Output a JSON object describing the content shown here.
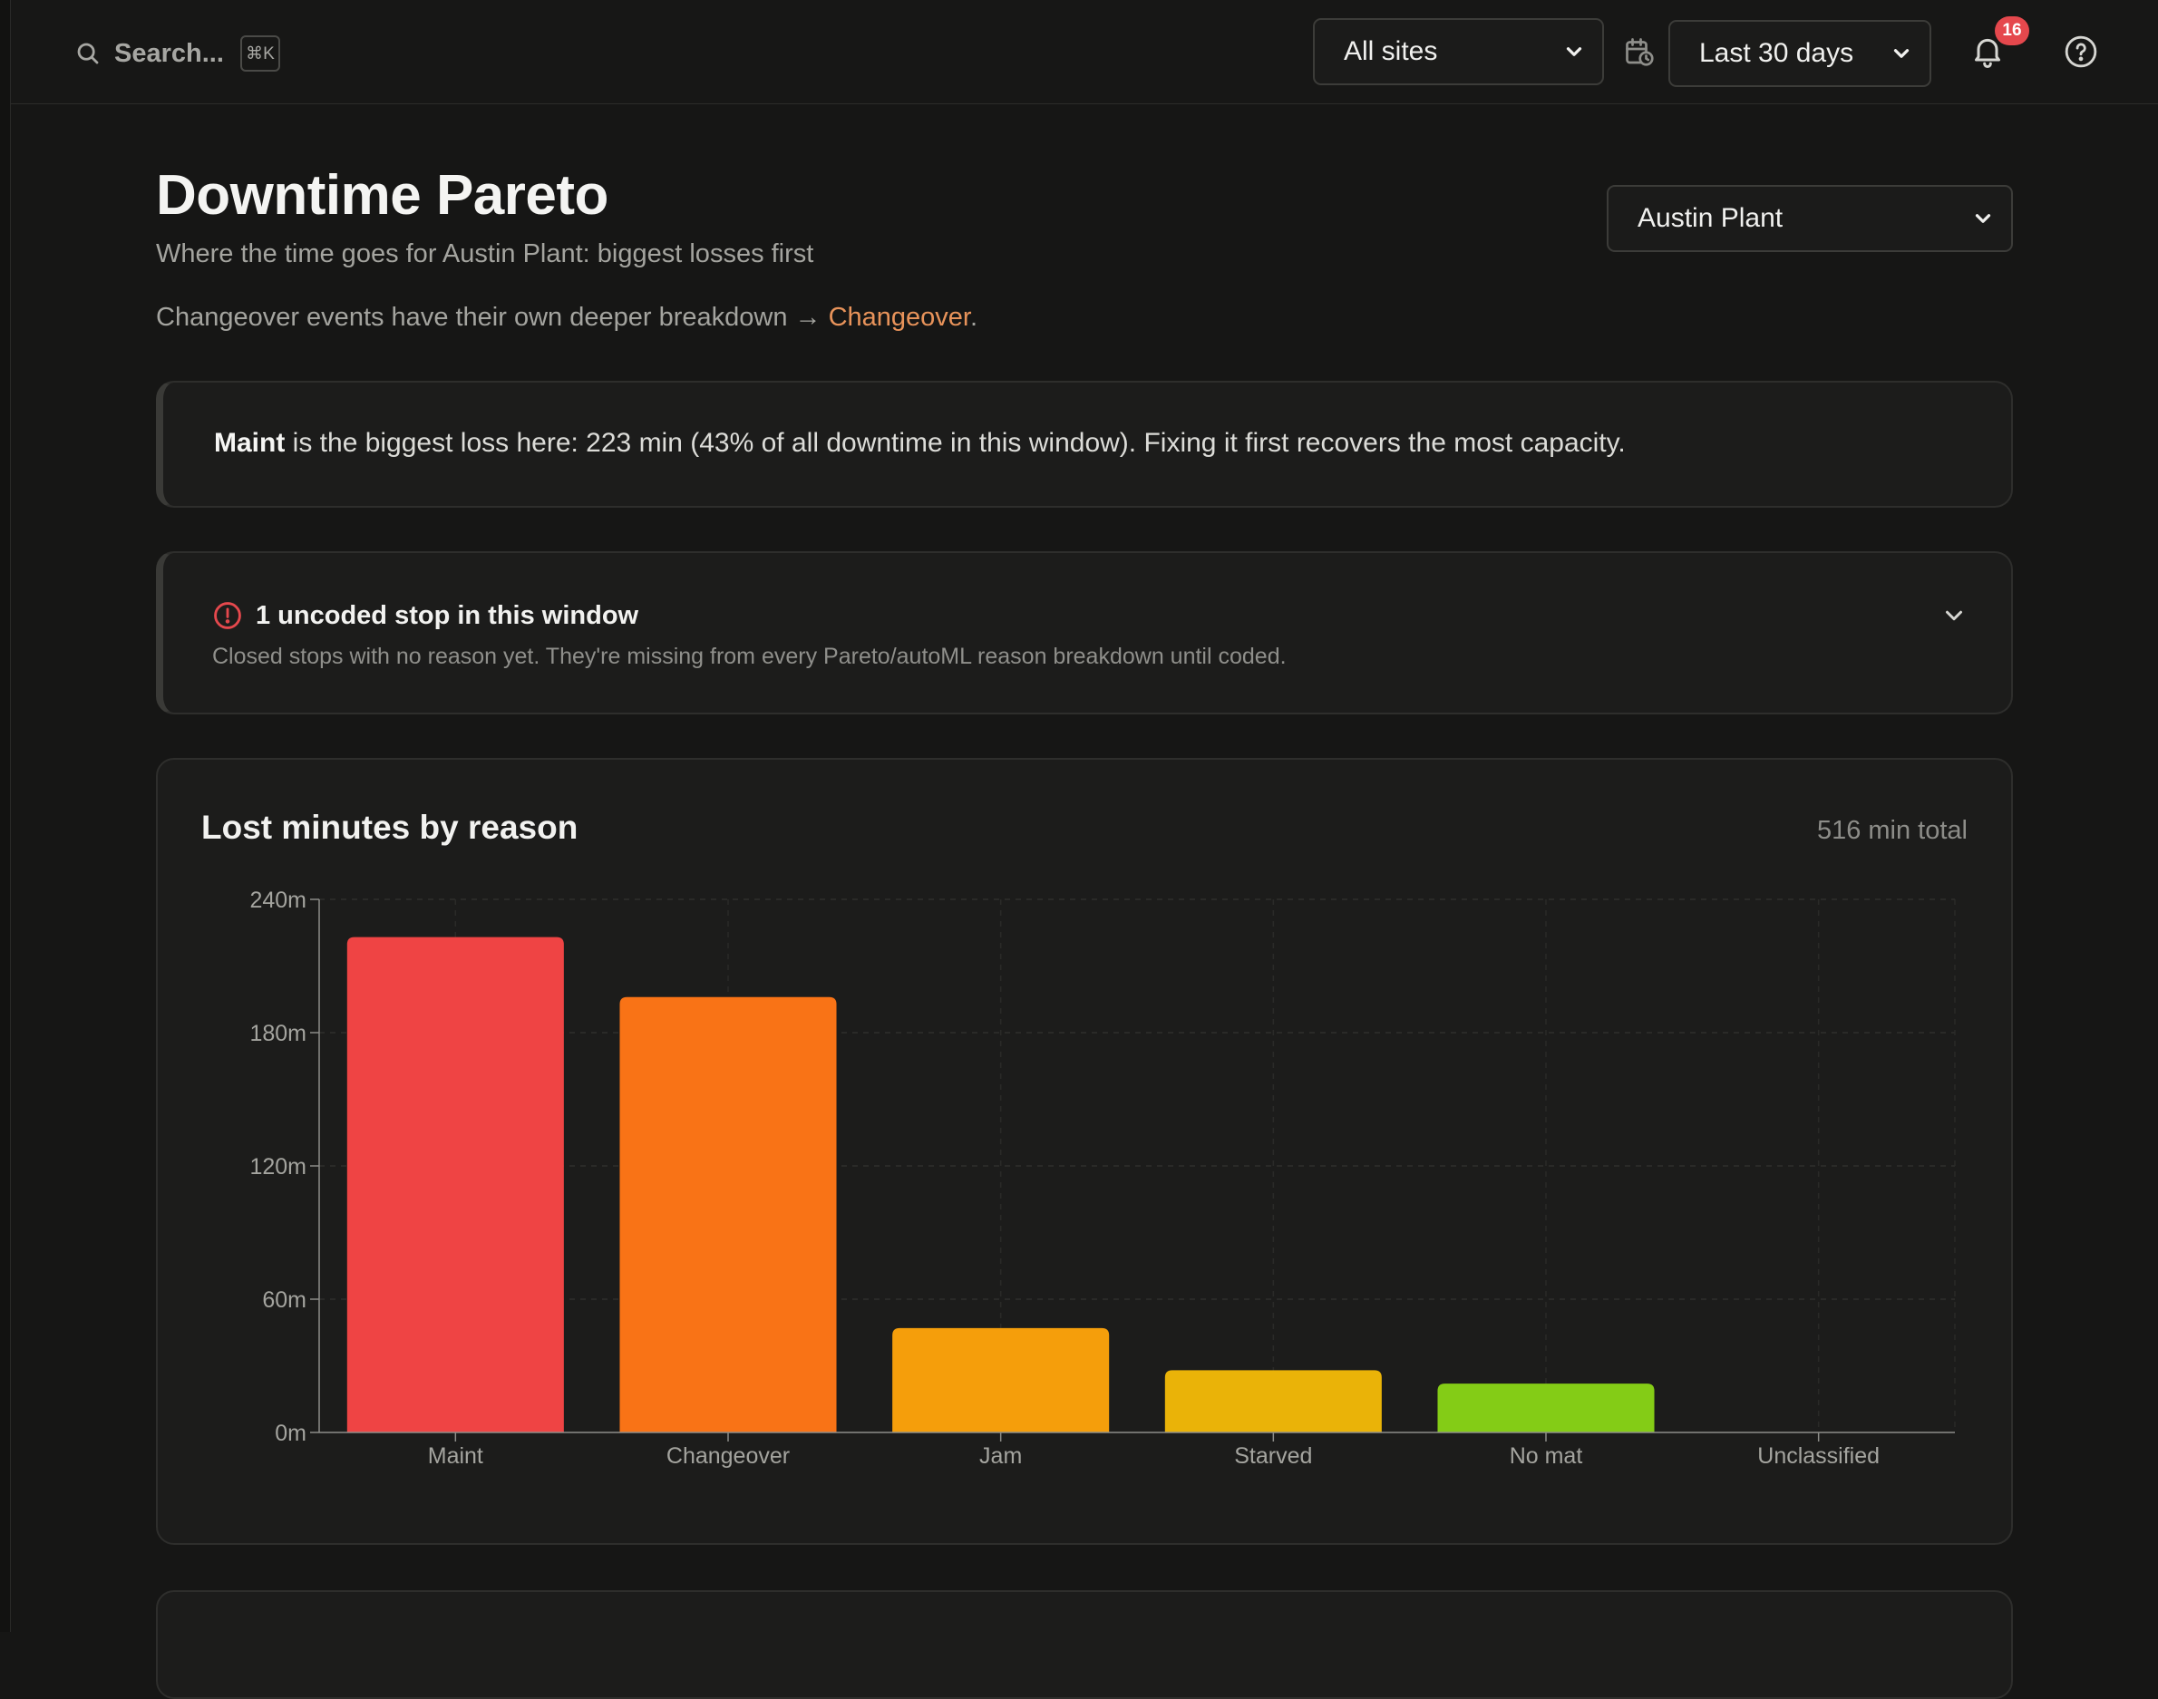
{
  "topbar": {
    "search_placeholder": "Search...",
    "shortcut": "⌘K",
    "sites_select": "All sites",
    "range_select": "Last 30 days",
    "notifications_count": "16",
    "icons": [
      "search-icon",
      "calendar-clock-icon",
      "bell-icon",
      "help-icon",
      "chevron-down-icon"
    ]
  },
  "page": {
    "title": "Downtime Pareto",
    "subtitle": "Where the time goes for Austin Plant: biggest losses first",
    "note_prefix": "Changeover events have their own deeper breakdown →",
    "note_link": "Changeover",
    "note_suffix": ".",
    "plant_select": "Austin Plant"
  },
  "insight": {
    "lead": "Maint",
    "text": "is the biggest loss here: 223 min (43% of all downtime in this window). Fixing it first recovers the most capacity."
  },
  "uncoded": {
    "title": "1 uncoded stop in this window",
    "description": "Closed stops with no reason yet. They're missing from every Pareto/autoML reason breakdown until coded."
  },
  "chart_card": {
    "title": "Lost minutes by reason",
    "total": "516 min total"
  },
  "colors": {
    "background": "#161615",
    "card": "#1c1c1b",
    "link": "#e8935a",
    "badge": "#e5484d"
  },
  "chart_data": {
    "type": "bar",
    "title": "Lost minutes by reason",
    "xlabel": "",
    "ylabel": "",
    "categories": [
      "Maint",
      "Changeover",
      "Jam",
      "Starved",
      "No mat",
      "Unclassified"
    ],
    "values": [
      223,
      196,
      47,
      28,
      22,
      0
    ],
    "colors": [
      "#ef4444",
      "#f97316",
      "#f59e0b",
      "#eab308",
      "#84cc16",
      "#22c55e"
    ],
    "ylim": [
      0,
      240
    ],
    "yticks": [
      0,
      60,
      120,
      180,
      240
    ],
    "ytick_labels": [
      "0m",
      "60m",
      "120m",
      "180m",
      "240m"
    ],
    "grid": true
  }
}
